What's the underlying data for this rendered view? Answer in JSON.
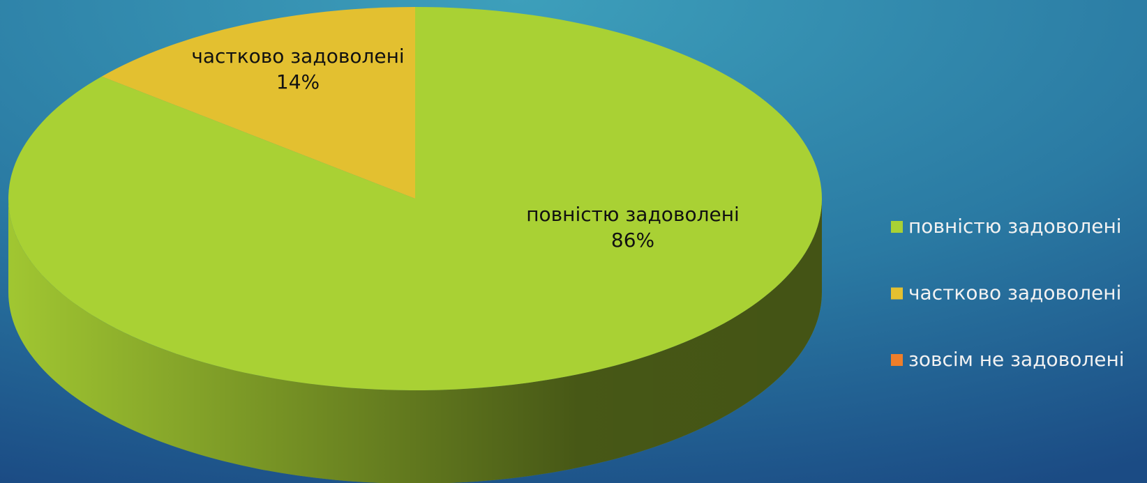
{
  "chart_data": {
    "type": "pie",
    "categories": [
      "повністю задоволені",
      "частково задоволені",
      "зовсім не задоволені"
    ],
    "values": [
      86,
      14,
      0
    ],
    "value_labels": [
      "86%",
      "14%",
      null
    ],
    "colors": [
      "#a9d134",
      "#e3c030",
      "#ee7e2a"
    ],
    "legend": "right"
  }
}
